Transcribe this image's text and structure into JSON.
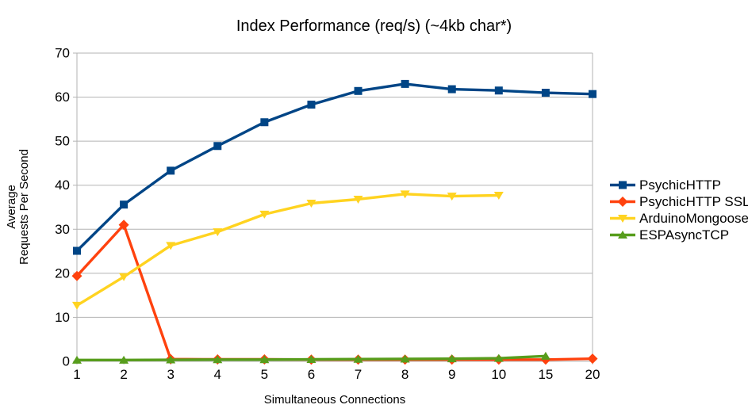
{
  "colors": {
    "background": "#ffffff",
    "grid": "#b3b3b3",
    "text": "#000000"
  },
  "chart_data": {
    "type": "line",
    "title": "Index Performance (req/s) (~4kb char*)",
    "xlabel": "Simultaneous Connections",
    "ylabel": "Average Requests Per Second",
    "ylabel_lines": [
      "Average",
      "Requests Per Second"
    ],
    "categories": [
      1,
      2,
      3,
      4,
      5,
      6,
      7,
      8,
      9,
      10,
      15,
      20
    ],
    "ylim": [
      0,
      70
    ],
    "ytick_step": 10,
    "grid": true,
    "legend_position": "right",
    "series": [
      {
        "name": "PsychicHTTP",
        "color": "#004586",
        "marker": "square",
        "values": [
          25.1,
          35.6,
          43.3,
          48.9,
          54.3,
          58.3,
          61.4,
          63.0,
          61.8,
          61.5,
          61.0,
          60.7
        ]
      },
      {
        "name": "PsychicHTTP SSL",
        "color": "#ff420e",
        "marker": "diamond",
        "values": [
          19.4,
          31.0,
          0.5,
          0.45,
          0.45,
          0.4,
          0.4,
          0.4,
          0.4,
          0.4,
          0.4,
          0.6
        ]
      },
      {
        "name": "ArduinoMongoose",
        "color": "#ffd320",
        "marker": "triangle-down",
        "values": [
          12.7,
          19.2,
          26.3,
          29.4,
          33.4,
          35.9,
          36.8,
          38.0,
          37.5,
          37.7,
          null,
          null
        ]
      },
      {
        "name": "ESPAsyncTCP",
        "color": "#579d1c",
        "marker": "triangle-up",
        "values": [
          0.3,
          0.3,
          0.35,
          0.4,
          0.4,
          0.45,
          0.5,
          0.55,
          0.6,
          0.7,
          1.2,
          null
        ]
      }
    ]
  }
}
